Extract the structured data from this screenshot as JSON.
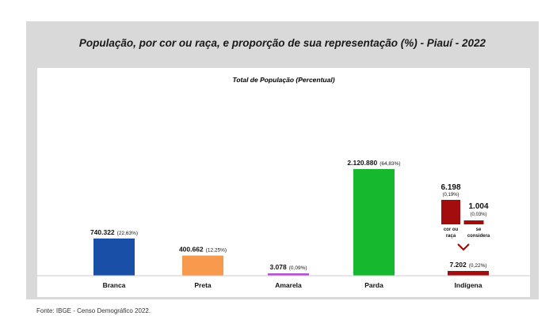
{
  "page": {
    "title": "População, por cor ou raça, e proporção de sua representação (%) - Piauí - 2022",
    "source": "Fonte: IBGE -  Censo Demográfico 2022."
  },
  "chart_data": {
    "type": "bar",
    "title": "Total de População (Percentual)",
    "categories": [
      "Branca",
      "Preta",
      "Amarela",
      "Parda",
      "Indígena"
    ],
    "values": [
      740322,
      400662,
      3078,
      2120880,
      7202
    ],
    "labels": [
      "740.322",
      "400.662",
      "3.078",
      "2.120.880",
      "7.202"
    ],
    "percent_labels": [
      "(22,63%)",
      "(12,25%)",
      "(0,09%)",
      "(64,83%)",
      "(0,22%)"
    ],
    "colors": [
      "#1a4fa8",
      "#f79a4e",
      "#b84fd6",
      "#16b82e",
      "#a30d0d"
    ],
    "ylim": [
      0,
      2200000
    ],
    "indigena_breakdown": {
      "values": [
        6198,
        1004
      ],
      "labels": [
        "6.198",
        "1.004"
      ],
      "percent_labels": [
        "(0,19%)",
        "(0,03%)"
      ],
      "categories": [
        "cor ou raça",
        "se considera"
      ],
      "color": "#a30d0d"
    }
  }
}
